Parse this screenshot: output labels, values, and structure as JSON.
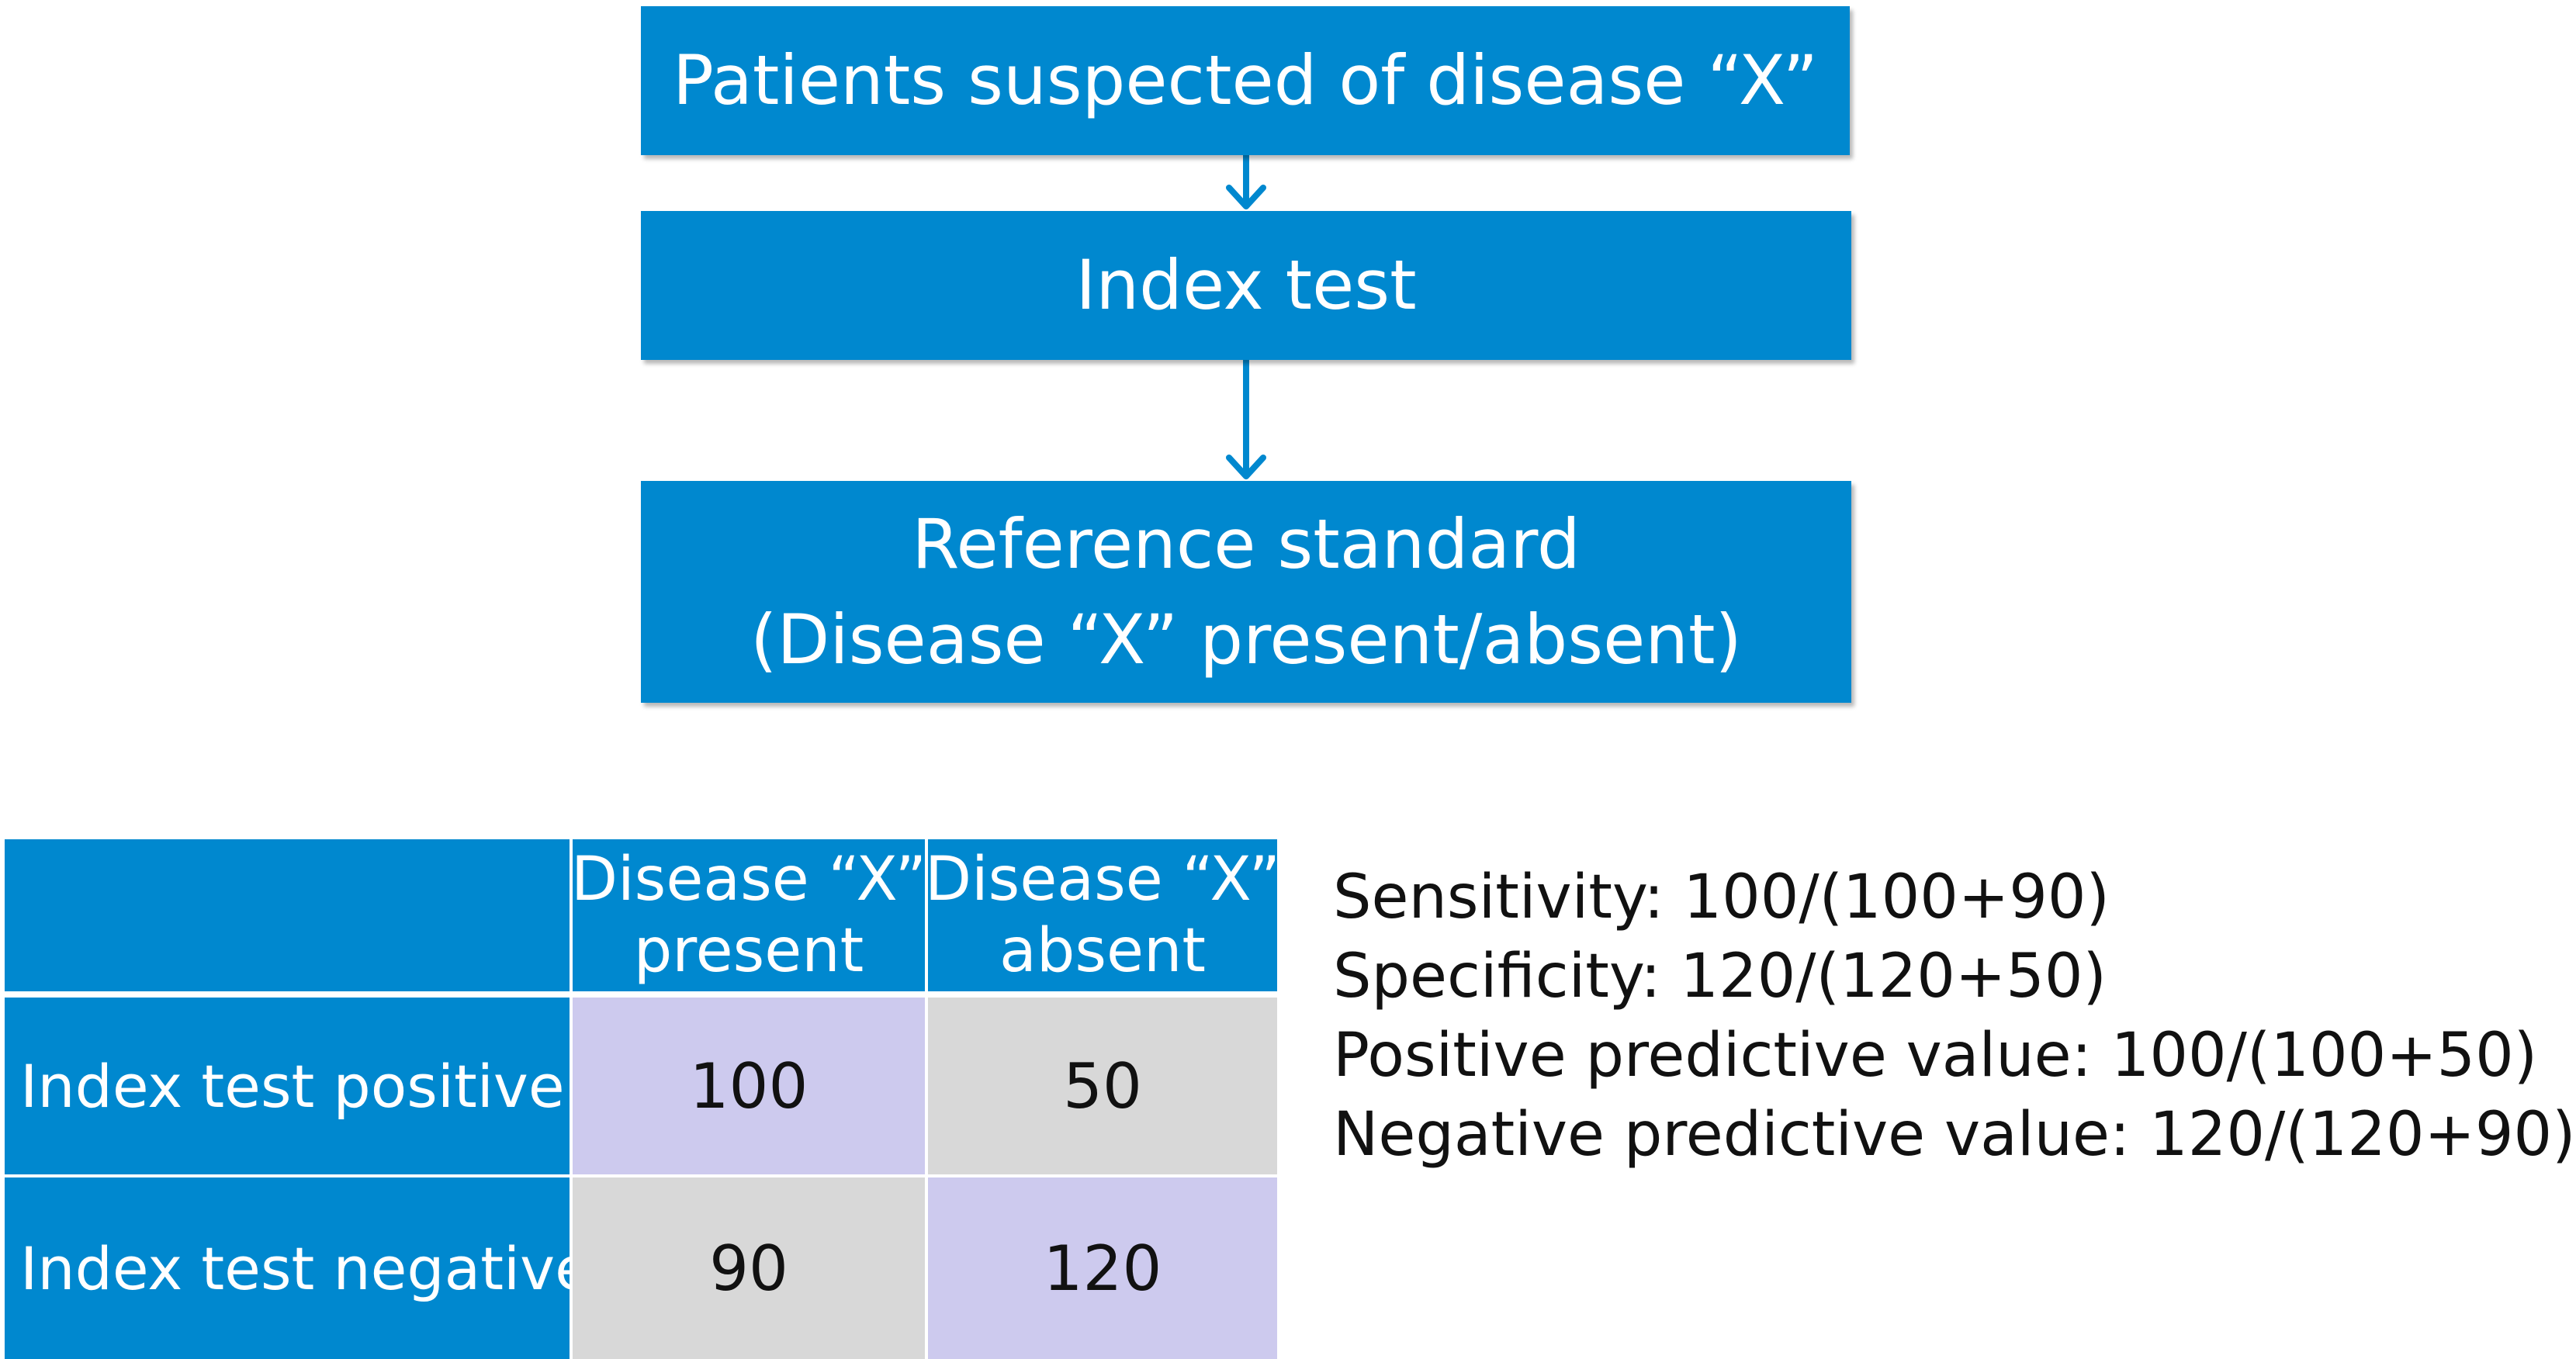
{
  "colors": {
    "box": "#0088cf",
    "box_text": "#ffffff",
    "cell_true": "#cdcaee",
    "cell_false": "#d8d8d8",
    "arrow": "#0088cf"
  },
  "flow": {
    "step1": "Patients suspected of disease “X”",
    "step2": "Index test",
    "step3_line1": "Reference standard",
    "step3_line2": "(Disease “X” present/absent)"
  },
  "table": {
    "col_headers": [
      {
        "line1": "Disease “X”",
        "line2": "present"
      },
      {
        "line1": "Disease “X”",
        "line2": "absent"
      }
    ],
    "rows": [
      {
        "label": "Index test positive",
        "values": [
          "100",
          "50"
        ]
      },
      {
        "label": "Index test negative",
        "values": [
          "90",
          "120"
        ]
      }
    ]
  },
  "metrics": [
    "Sensitivity: 100/(100+90)",
    "Specificity: 120/(120+50)",
    "Positive predictive value: 100/(100+50)",
    "Negative predictive value: 120/(120+90)"
  ]
}
